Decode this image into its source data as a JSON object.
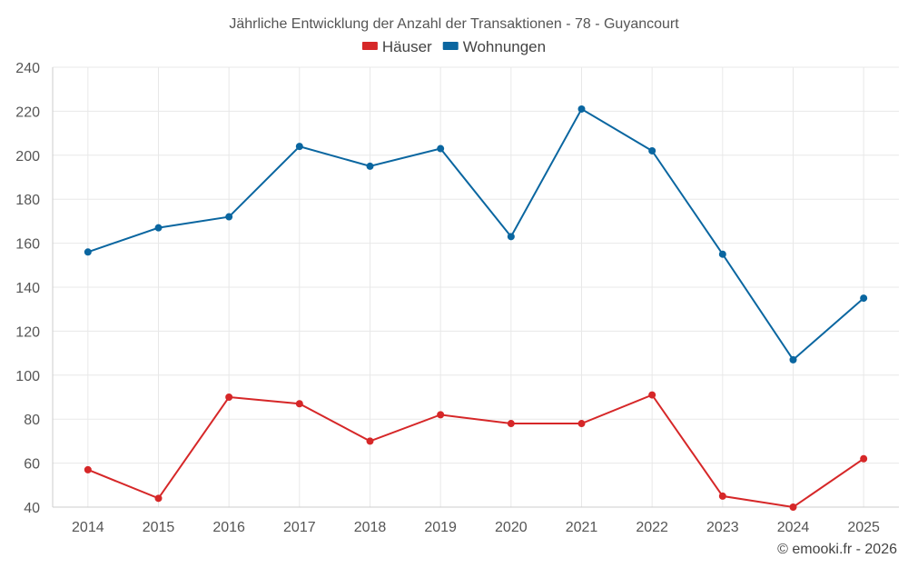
{
  "chart_data": {
    "type": "line",
    "title": "Jährliche Entwicklung der Anzahl der Transaktionen - 78 - Guyancourt",
    "categories": [
      "2014",
      "2015",
      "2016",
      "2017",
      "2018",
      "2019",
      "2020",
      "2021",
      "2022",
      "2023",
      "2024",
      "2025"
    ],
    "series": [
      {
        "name": "Häuser",
        "color": "#d62728",
        "values": [
          57,
          44,
          90,
          87,
          70,
          82,
          78,
          78,
          91,
          45,
          40,
          62
        ]
      },
      {
        "name": "Wohnungen",
        "color": "#0a66a0",
        "values": [
          156,
          167,
          172,
          204,
          195,
          203,
          163,
          221,
          202,
          155,
          107,
          135
        ]
      }
    ],
    "ylim": [
      40,
      240
    ],
    "yticks": [
      40,
      60,
      80,
      100,
      120,
      140,
      160,
      180,
      200,
      220,
      240
    ],
    "xlabel": "",
    "ylabel": "",
    "grid": true,
    "legend_position": "top-center"
  },
  "credit": "© emooki.fr - 2026"
}
